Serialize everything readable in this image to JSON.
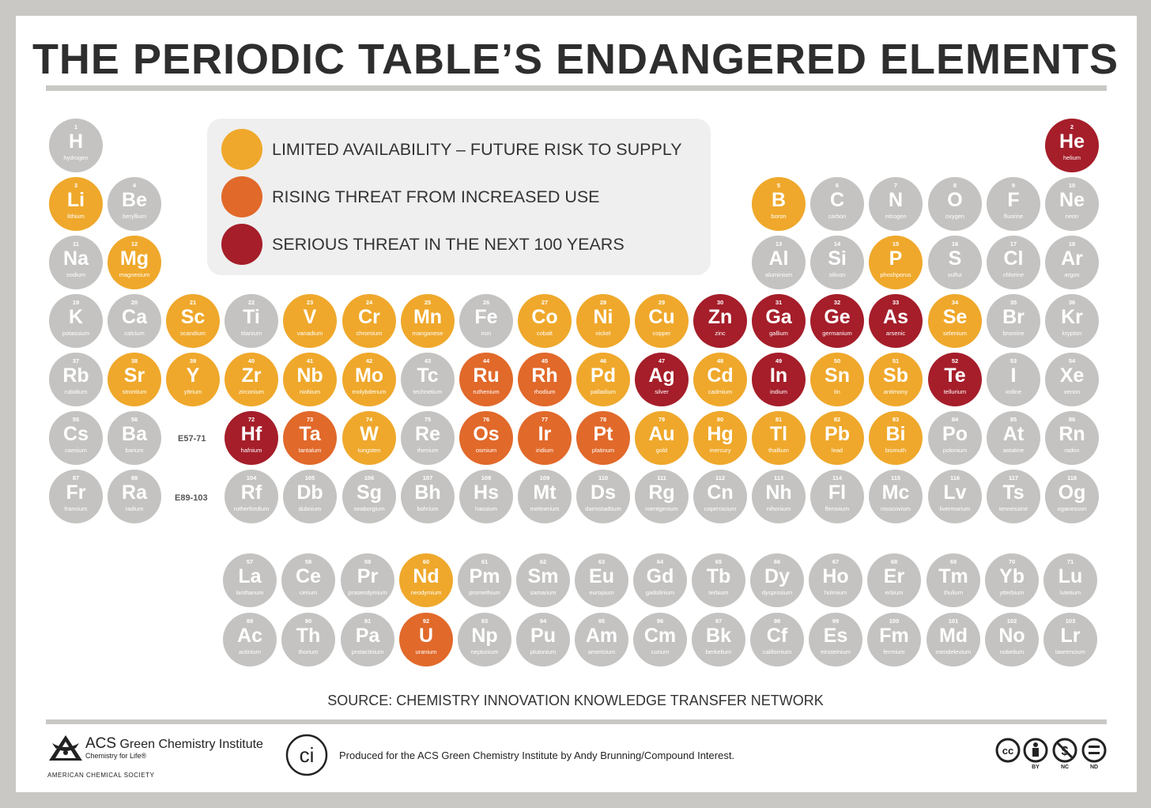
{
  "title": "THE PERIODIC TABLE’S ENDANGERED ELEMENTS",
  "colors": {
    "limited": "#efa82b",
    "rising": "#e1692a",
    "serious": "#a51e2a",
    "normal": "#c4c3c1"
  },
  "legend": [
    {
      "level": "limited",
      "label": "LIMITED AVAILABILITY – FUTURE RISK TO SUPPLY"
    },
    {
      "level": "rising",
      "label": "RISING THREAT FROM INCREASED USE"
    },
    {
      "level": "serious",
      "label": "SERIOUS THREAT IN THE NEXT 100 YEARS"
    }
  ],
  "gap_labels": {
    "lanthanides": "E57-71",
    "actinides": "E89-103"
  },
  "elements": [
    {
      "n": "1",
      "s": "H",
      "name": "hydrogen",
      "level": "none"
    },
    {
      "n": "2",
      "s": "He",
      "name": "helium",
      "level": "serious"
    },
    {
      "n": "3",
      "s": "Li",
      "name": "lithium",
      "level": "limited"
    },
    {
      "n": "4",
      "s": "Be",
      "name": "beryllium",
      "level": "none"
    },
    {
      "n": "5",
      "s": "B",
      "name": "boron",
      "level": "limited"
    },
    {
      "n": "6",
      "s": "C",
      "name": "carbon",
      "level": "none"
    },
    {
      "n": "7",
      "s": "N",
      "name": "nitrogen",
      "level": "none"
    },
    {
      "n": "8",
      "s": "O",
      "name": "oxygen",
      "level": "none"
    },
    {
      "n": "9",
      "s": "F",
      "name": "fluorine",
      "level": "none"
    },
    {
      "n": "10",
      "s": "Ne",
      "name": "neon",
      "level": "none"
    },
    {
      "n": "11",
      "s": "Na",
      "name": "sodium",
      "level": "none"
    },
    {
      "n": "12",
      "s": "Mg",
      "name": "magnesium",
      "level": "limited"
    },
    {
      "n": "13",
      "s": "Al",
      "name": "aluminium",
      "level": "none"
    },
    {
      "n": "14",
      "s": "Si",
      "name": "silicon",
      "level": "none"
    },
    {
      "n": "15",
      "s": "P",
      "name": "phoshporus",
      "level": "limited"
    },
    {
      "n": "16",
      "s": "S",
      "name": "sulfur",
      "level": "none"
    },
    {
      "n": "17",
      "s": "Cl",
      "name": "chlorine",
      "level": "none"
    },
    {
      "n": "18",
      "s": "Ar",
      "name": "argon",
      "level": "none"
    },
    {
      "n": "19",
      "s": "K",
      "name": "potassium",
      "level": "none"
    },
    {
      "n": "20",
      "s": "Ca",
      "name": "calcium",
      "level": "none"
    },
    {
      "n": "21",
      "s": "Sc",
      "name": "scandium",
      "level": "limited"
    },
    {
      "n": "22",
      "s": "Ti",
      "name": "titanium",
      "level": "none"
    },
    {
      "n": "23",
      "s": "V",
      "name": "vanadium",
      "level": "limited"
    },
    {
      "n": "24",
      "s": "Cr",
      "name": "chromium",
      "level": "limited"
    },
    {
      "n": "25",
      "s": "Mn",
      "name": "manganese",
      "level": "limited"
    },
    {
      "n": "26",
      "s": "Fe",
      "name": "iron",
      "level": "none"
    },
    {
      "n": "27",
      "s": "Co",
      "name": "cobalt",
      "level": "limited"
    },
    {
      "n": "28",
      "s": "Ni",
      "name": "nickel",
      "level": "limited"
    },
    {
      "n": "29",
      "s": "Cu",
      "name": "copper",
      "level": "limited"
    },
    {
      "n": "30",
      "s": "Zn",
      "name": "zinc",
      "level": "serious"
    },
    {
      "n": "31",
      "s": "Ga",
      "name": "gallium",
      "level": "serious"
    },
    {
      "n": "32",
      "s": "Ge",
      "name": "germanium",
      "level": "serious"
    },
    {
      "n": "33",
      "s": "As",
      "name": "arsenic",
      "level": "serious"
    },
    {
      "n": "34",
      "s": "Se",
      "name": "selenium",
      "level": "limited"
    },
    {
      "n": "35",
      "s": "Br",
      "name": "bromine",
      "level": "none"
    },
    {
      "n": "36",
      "s": "Kr",
      "name": "krypton",
      "level": "none"
    },
    {
      "n": "37",
      "s": "Rb",
      "name": "rubidium",
      "level": "none"
    },
    {
      "n": "38",
      "s": "Sr",
      "name": "strontium",
      "level": "limited"
    },
    {
      "n": "39",
      "s": "Y",
      "name": "yttrium",
      "level": "limited"
    },
    {
      "n": "40",
      "s": "Zr",
      "name": "zirconium",
      "level": "limited"
    },
    {
      "n": "41",
      "s": "Nb",
      "name": "niobium",
      "level": "limited"
    },
    {
      "n": "42",
      "s": "Mo",
      "name": "molybdenum",
      "level": "limited"
    },
    {
      "n": "43",
      "s": "Tc",
      "name": "technetium",
      "level": "none"
    },
    {
      "n": "44",
      "s": "Ru",
      "name": "ruthenium",
      "level": "rising"
    },
    {
      "n": "45",
      "s": "Rh",
      "name": "rhodium",
      "level": "rising"
    },
    {
      "n": "46",
      "s": "Pd",
      "name": "palladium",
      "level": "limited"
    },
    {
      "n": "47",
      "s": "Ag",
      "name": "silver",
      "level": "serious"
    },
    {
      "n": "48",
      "s": "Cd",
      "name": "cadmium",
      "level": "limited"
    },
    {
      "n": "49",
      "s": "In",
      "name": "indium",
      "level": "serious"
    },
    {
      "n": "50",
      "s": "Sn",
      "name": "tin",
      "level": "limited"
    },
    {
      "n": "51",
      "s": "Sb",
      "name": "antimony",
      "level": "limited"
    },
    {
      "n": "52",
      "s": "Te",
      "name": "tellurium",
      "level": "serious"
    },
    {
      "n": "53",
      "s": "I",
      "name": "iodine",
      "level": "none"
    },
    {
      "n": "54",
      "s": "Xe",
      "name": "xenon",
      "level": "none"
    },
    {
      "n": "55",
      "s": "Cs",
      "name": "caesium",
      "level": "none"
    },
    {
      "n": "56",
      "s": "Ba",
      "name": "barium",
      "level": "none"
    },
    {
      "n": "72",
      "s": "Hf",
      "name": "hafnium",
      "level": "serious"
    },
    {
      "n": "73",
      "s": "Ta",
      "name": "tantalum",
      "level": "rising"
    },
    {
      "n": "74",
      "s": "W",
      "name": "tungsten",
      "level": "limited"
    },
    {
      "n": "75",
      "s": "Re",
      "name": "rhenium",
      "level": "none"
    },
    {
      "n": "76",
      "s": "Os",
      "name": "osmium",
      "level": "rising"
    },
    {
      "n": "77",
      "s": "Ir",
      "name": "iridium",
      "level": "rising"
    },
    {
      "n": "78",
      "s": "Pt",
      "name": "platinum",
      "level": "rising"
    },
    {
      "n": "79",
      "s": "Au",
      "name": "gold",
      "level": "limited"
    },
    {
      "n": "80",
      "s": "Hg",
      "name": "mercury",
      "level": "limited"
    },
    {
      "n": "81",
      "s": "Tl",
      "name": "thallium",
      "level": "limited"
    },
    {
      "n": "82",
      "s": "Pb",
      "name": "lead",
      "level": "limited"
    },
    {
      "n": "83",
      "s": "Bi",
      "name": "bismuth",
      "level": "limited"
    },
    {
      "n": "84",
      "s": "Po",
      "name": "polonium",
      "level": "none"
    },
    {
      "n": "85",
      "s": "At",
      "name": "astatine",
      "level": "none"
    },
    {
      "n": "86",
      "s": "Rn",
      "name": "radon",
      "level": "none"
    },
    {
      "n": "87",
      "s": "Fr",
      "name": "francium",
      "level": "none"
    },
    {
      "n": "88",
      "s": "Ra",
      "name": "radium",
      "level": "none"
    },
    {
      "n": "104",
      "s": "Rf",
      "name": "rutherfordium",
      "level": "none"
    },
    {
      "n": "105",
      "s": "Db",
      "name": "dubnium",
      "level": "none"
    },
    {
      "n": "106",
      "s": "Sg",
      "name": "seaborgium",
      "level": "none"
    },
    {
      "n": "107",
      "s": "Bh",
      "name": "bohrium",
      "level": "none"
    },
    {
      "n": "108",
      "s": "Hs",
      "name": "hassium",
      "level": "none"
    },
    {
      "n": "109",
      "s": "Mt",
      "name": "meitnerium",
      "level": "none"
    },
    {
      "n": "110",
      "s": "Ds",
      "name": "darmstadtium",
      "level": "none"
    },
    {
      "n": "111",
      "s": "Rg",
      "name": "roentgenium",
      "level": "none"
    },
    {
      "n": "112",
      "s": "Cn",
      "name": "copernicium",
      "level": "none"
    },
    {
      "n": "113",
      "s": "Nh",
      "name": "nihonium",
      "level": "none"
    },
    {
      "n": "114",
      "s": "Fl",
      "name": "flerovium",
      "level": "none"
    },
    {
      "n": "115",
      "s": "Mc",
      "name": "moscovium",
      "level": "none"
    },
    {
      "n": "116",
      "s": "Lv",
      "name": "livermorium",
      "level": "none"
    },
    {
      "n": "117",
      "s": "Ts",
      "name": "tennessine",
      "level": "none"
    },
    {
      "n": "118",
      "s": "Og",
      "name": "oganesson",
      "level": "none"
    },
    {
      "n": "57",
      "s": "La",
      "name": "lanthanum",
      "level": "none"
    },
    {
      "n": "58",
      "s": "Ce",
      "name": "cerium",
      "level": "none"
    },
    {
      "n": "59",
      "s": "Pr",
      "name": "praseodymium",
      "level": "none"
    },
    {
      "n": "60",
      "s": "Nd",
      "name": "neodymium",
      "level": "limited"
    },
    {
      "n": "61",
      "s": "Pm",
      "name": "promethium",
      "level": "none"
    },
    {
      "n": "62",
      "s": "Sm",
      "name": "samarium",
      "level": "none"
    },
    {
      "n": "63",
      "s": "Eu",
      "name": "europium",
      "level": "none"
    },
    {
      "n": "64",
      "s": "Gd",
      "name": "gadolinium",
      "level": "none"
    },
    {
      "n": "65",
      "s": "Tb",
      "name": "terbium",
      "level": "none"
    },
    {
      "n": "66",
      "s": "Dy",
      "name": "dysprosium",
      "level": "none"
    },
    {
      "n": "67",
      "s": "Ho",
      "name": "holmium",
      "level": "none"
    },
    {
      "n": "68",
      "s": "Er",
      "name": "erbium",
      "level": "none"
    },
    {
      "n": "69",
      "s": "Tm",
      "name": "thulium",
      "level": "none"
    },
    {
      "n": "70",
      "s": "Yb",
      "name": "ytterbium",
      "level": "none"
    },
    {
      "n": "71",
      "s": "Lu",
      "name": "lutetium",
      "level": "none"
    },
    {
      "n": "89",
      "s": "Ac",
      "name": "actinium",
      "level": "none"
    },
    {
      "n": "90",
      "s": "Th",
      "name": "thorium",
      "level": "none"
    },
    {
      "n": "91",
      "s": "Pa",
      "name": "protactinium",
      "level": "none"
    },
    {
      "n": "92",
      "s": "U",
      "name": "uranium",
      "level": "rising"
    },
    {
      "n": "93",
      "s": "Np",
      "name": "neptunium",
      "level": "none"
    },
    {
      "n": "94",
      "s": "Pu",
      "name": "plutonium",
      "level": "none"
    },
    {
      "n": "95",
      "s": "Am",
      "name": "americium",
      "level": "none"
    },
    {
      "n": "96",
      "s": "Cm",
      "name": "curium",
      "level": "none"
    },
    {
      "n": "97",
      "s": "Bk",
      "name": "berkelium",
      "level": "none"
    },
    {
      "n": "98",
      "s": "Cf",
      "name": "californium",
      "level": "none"
    },
    {
      "n": "99",
      "s": "Es",
      "name": "einsteinium",
      "level": "none"
    },
    {
      "n": "100",
      "s": "Fm",
      "name": "fermium",
      "level": "none"
    },
    {
      "n": "101",
      "s": "Md",
      "name": "mendelevium",
      "level": "none"
    },
    {
      "n": "102",
      "s": "No",
      "name": "nobelium",
      "level": "none"
    },
    {
      "n": "103",
      "s": "Lr",
      "name": "lawrencium",
      "level": "none"
    }
  ],
  "source": "SOURCE: CHEMISTRY INNOVATION KNOWLEDGE TRANSFER NETWORK",
  "footer": {
    "acs_name": "ACS",
    "acs_institute": "Green Chemistry Institute",
    "acs_tagline": "Chemistry for Life®",
    "acs_society": "AMERICAN CHEMICAL SOCIETY",
    "ci_logo_text": "ci",
    "credit": "Produced for the ACS Green Chemistry Institute by Andy Brunning/Compound Interest.",
    "cc_labels": [
      "BY",
      "NC",
      "ND"
    ]
  }
}
